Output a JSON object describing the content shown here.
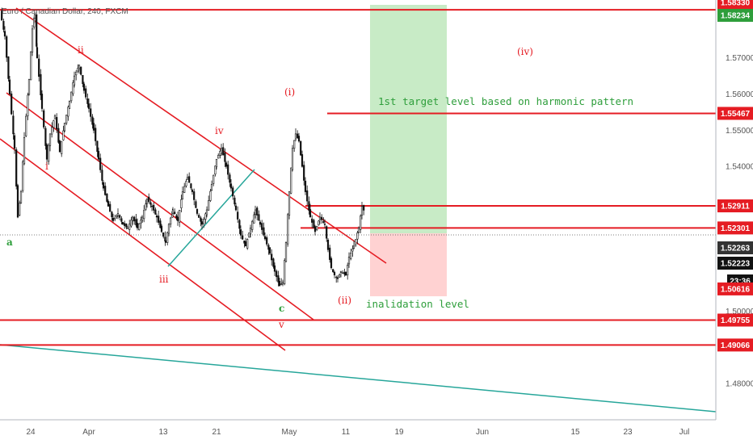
{
  "header": {
    "title": "Euro / Canadian Dollar, 240, FXCM"
  },
  "colors": {
    "red": "#e51c23",
    "green": "#2e9e3b",
    "teal": "#26a69a",
    "target_zone": "#c8ebc6",
    "stop_zone": "#ffd2d2",
    "candle": "#111111",
    "grid": "#f0f3f7",
    "axis_text": "#555555"
  },
  "chart_data": {
    "type": "candlestick",
    "symbol": "EURCAD",
    "timeframe": "240",
    "source": "FXCM",
    "ylim": [
      1.47,
      1.586
    ],
    "y_ticks": [
      "1.57000",
      "1.56000",
      "1.55000",
      "1.54000",
      "1.50000",
      "1.48000"
    ],
    "x_ticks": [
      "24",
      "Apr",
      "13",
      "21",
      "May",
      "11",
      "19",
      "Jun",
      "15",
      "23",
      "Jul"
    ],
    "price_path": [
      [
        0,
        1.583
      ],
      [
        6,
        1.576
      ],
      [
        12,
        1.56
      ],
      [
        18,
        1.545
      ],
      [
        22,
        1.526
      ],
      [
        26,
        1.533
      ],
      [
        30,
        1.548
      ],
      [
        36,
        1.564
      ],
      [
        40,
        1.578
      ],
      [
        43,
        1.582
      ],
      [
        46,
        1.57
      ],
      [
        52,
        1.556
      ],
      [
        58,
        1.542
      ],
      [
        62,
        1.549
      ],
      [
        68,
        1.554
      ],
      [
        74,
        1.544
      ],
      [
        80,
        1.552
      ],
      [
        86,
        1.558
      ],
      [
        92,
        1.565
      ],
      [
        98,
        1.568
      ],
      [
        104,
        1.561
      ],
      [
        110,
        1.556
      ],
      [
        116,
        1.55
      ],
      [
        122,
        1.542
      ],
      [
        128,
        1.534
      ],
      [
        134,
        1.529
      ],
      [
        140,
        1.525
      ],
      [
        146,
        1.527
      ],
      [
        152,
        1.524
      ],
      [
        158,
        1.523
      ],
      [
        164,
        1.526
      ],
      [
        170,
        1.523
      ],
      [
        176,
        1.526
      ],
      [
        182,
        1.531
      ],
      [
        188,
        1.529
      ],
      [
        194,
        1.526
      ],
      [
        200,
        1.522
      ],
      [
        205,
        1.519
      ],
      [
        209,
        1.524
      ],
      [
        214,
        1.528
      ],
      [
        220,
        1.525
      ],
      [
        226,
        1.533
      ],
      [
        232,
        1.537
      ],
      [
        238,
        1.533
      ],
      [
        244,
        1.527
      ],
      [
        250,
        1.524
      ],
      [
        256,
        1.528
      ],
      [
        262,
        1.535
      ],
      [
        268,
        1.542
      ],
      [
        274,
        1.545
      ],
      [
        280,
        1.54
      ],
      [
        286,
        1.534
      ],
      [
        292,
        1.528
      ],
      [
        298,
        1.521
      ],
      [
        304,
        1.518
      ],
      [
        310,
        1.523
      ],
      [
        316,
        1.528
      ],
      [
        322,
        1.524
      ],
      [
        328,
        1.52
      ],
      [
        334,
        1.516
      ],
      [
        340,
        1.511
      ],
      [
        346,
        1.507
      ],
      [
        350,
        1.508
      ],
      [
        354,
        1.519
      ],
      [
        358,
        1.533
      ],
      [
        362,
        1.545
      ],
      [
        366,
        1.549
      ],
      [
        370,
        1.547
      ],
      [
        374,
        1.54
      ],
      [
        378,
        1.533
      ],
      [
        384,
        1.526
      ],
      [
        390,
        1.522
      ],
      [
        396,
        1.526
      ],
      [
        402,
        1.524
      ],
      [
        406,
        1.517
      ],
      [
        410,
        1.512
      ],
      [
        414,
        1.51
      ],
      [
        418,
        1.509
      ],
      [
        422,
        1.511
      ],
      [
        428,
        1.51
      ],
      [
        432,
        1.515
      ],
      [
        438,
        1.518
      ],
      [
        444,
        1.523
      ],
      [
        448,
        1.529
      ],
      [
        452,
        1.527
      ]
    ],
    "horizontal_levels": [
      {
        "label": "1.58330",
        "value": 1.5833,
        "x_start": 0
      },
      {
        "label": "1.55467",
        "value": 1.55467,
        "x_start": 405
      },
      {
        "label": "1.52911",
        "value": 1.52911,
        "x_start": 378
      },
      {
        "label": "1.52301",
        "value": 1.52301,
        "x_start": 372
      },
      {
        "label": "1.49755",
        "value": 1.49755,
        "x_start": 0
      },
      {
        "label": "1.49066",
        "value": 1.49066,
        "x_start": 0
      }
    ],
    "price_tags": [
      {
        "label": "1.58330",
        "value": 1.5833,
        "color": "#e51c23"
      },
      {
        "label": "1.58234",
        "value": 1.58234,
        "color": "#2e9e3b"
      },
      {
        "label": "1.55467",
        "value": 1.55467,
        "color": "#e51c23"
      },
      {
        "label": "1.52911",
        "value": 1.52911,
        "color": "#e51c23"
      },
      {
        "label": "1.52301",
        "value": 1.52301,
        "color": "#e51c23"
      },
      {
        "label": "1.52263",
        "value": 1.52263,
        "color": "#333333"
      },
      {
        "label": "1.52223",
        "value": 1.52223,
        "color": "#111111"
      },
      {
        "label": "23:36",
        "value": 1.5137,
        "color": "#111111"
      },
      {
        "label": "1.50616",
        "value": 1.50616,
        "color": "#e51c23"
      },
      {
        "label": "1.49755",
        "value": 1.49755,
        "color": "#e51c23"
      },
      {
        "label": "1.49066",
        "value": 1.49066,
        "color": "#e51c23"
      }
    ],
    "labels": [
      {
        "text": "a",
        "color": "#2e9e3b"
      },
      {
        "text": "ii",
        "color": "#e51c23"
      },
      {
        "text": "i",
        "color": "#e51c23"
      },
      {
        "text": "iii",
        "color": "#e51c23"
      },
      {
        "text": "iv",
        "color": "#e51c23"
      },
      {
        "text": "v",
        "color": "#e51c23"
      },
      {
        "text": "c",
        "color": "#2e9e3b"
      },
      {
        "text": "(i)",
        "color": "#e51c23"
      },
      {
        "text": "(ii)",
        "color": "#e51c23"
      },
      {
        "text": "(iv)",
        "color": "#e51c23"
      },
      {
        "text": "1st target level based on harmonic pattern",
        "color": "#2e9e3b"
      },
      {
        "text": "inalidation level",
        "color": "#2e9e3b"
      }
    ],
    "legend": "none",
    "grid": false
  }
}
